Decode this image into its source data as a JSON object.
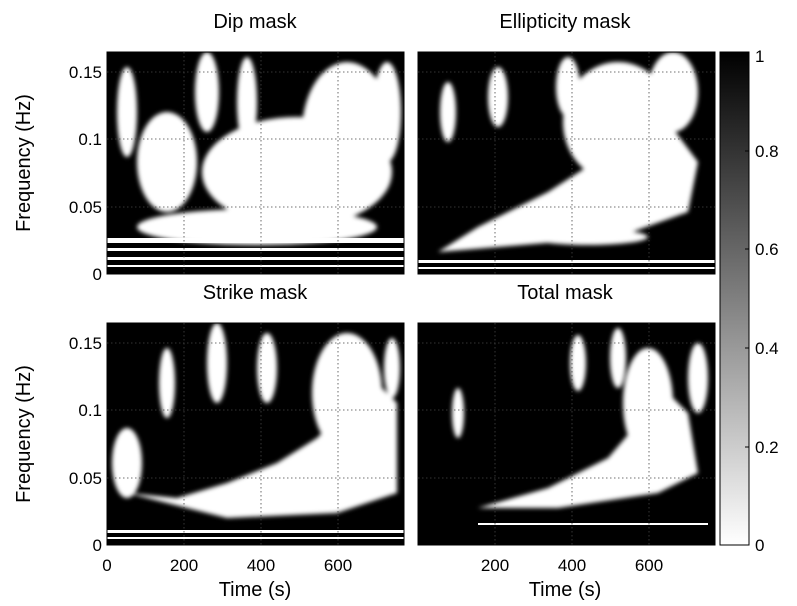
{
  "chart_data": {
    "type": "heatmap",
    "panels": [
      {
        "title": "Dip mask",
        "xlim": [
          0,
          760
        ],
        "ylim": [
          0,
          0.165
        ],
        "x_ticks": [
          0,
          200,
          400,
          600
        ],
        "y_ticks": [
          0,
          0.05,
          0.1,
          0.15
        ],
        "y_tick_labels": [
          "0",
          "0.05",
          "0.1",
          "0.15"
        ],
        "ylabel": "Frequency (Hz)",
        "xlabel": "",
        "colormap": "gray_reversed",
        "grid": true
      },
      {
        "title": "Ellipticity mask",
        "xlim": [
          0,
          760
        ],
        "ylim": [
          0,
          0.165
        ],
        "x_ticks": [
          0,
          200,
          400,
          600
        ],
        "y_ticks": [
          0,
          0.05,
          0.1,
          0.15
        ],
        "y_tick_labels": [],
        "ylabel": "",
        "xlabel": "",
        "colormap": "gray_reversed",
        "grid": true
      },
      {
        "title": "Strike mask",
        "xlim": [
          0,
          760
        ],
        "ylim": [
          0,
          0.165
        ],
        "x_ticks": [
          0,
          200,
          400,
          600
        ],
        "x_tick_labels": [
          "0",
          "200",
          "400",
          "600"
        ],
        "y_ticks": [
          0,
          0.05,
          0.1,
          0.15
        ],
        "y_tick_labels": [
          "0",
          "0.05",
          "0.1",
          "0.15"
        ],
        "ylabel": "Frequency (Hz)",
        "xlabel": "Time (s)",
        "colormap": "gray_reversed",
        "grid": true
      },
      {
        "title": "Total mask",
        "xlim": [
          0,
          760
        ],
        "ylim": [
          0,
          0.165
        ],
        "x_ticks": [
          0,
          200,
          400,
          600
        ],
        "x_tick_labels": [
          "200",
          "400",
          "600"
        ],
        "y_ticks": [
          0,
          0.05,
          0.1,
          0.15
        ],
        "y_tick_labels": [],
        "ylabel": "",
        "xlabel": "Time (s)",
        "colormap": "gray_reversed",
        "grid": true
      }
    ],
    "colorbar": {
      "range": [
        0,
        1
      ],
      "ticks": [
        0,
        0.2,
        0.4,
        0.6,
        0.8,
        1
      ],
      "tick_labels": [
        "0",
        "0.2",
        "0.4",
        "0.6",
        "0.8",
        "1"
      ],
      "low_color": "#ffffff",
      "high_color": "#000000"
    }
  }
}
